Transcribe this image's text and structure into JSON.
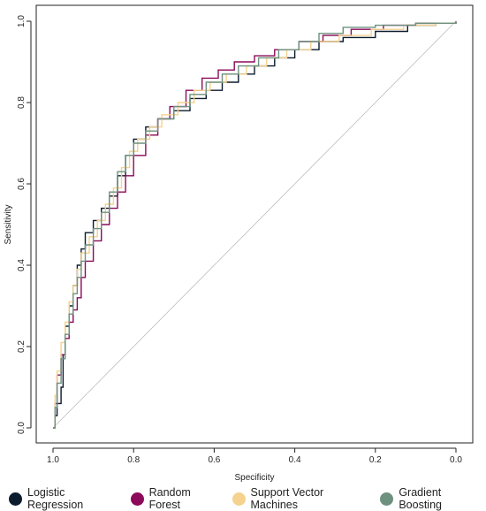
{
  "chart_data": {
    "type": "line",
    "title": "",
    "xlabel": "Specificity",
    "ylabel": "Sensitivity",
    "xlim": [
      1.0,
      0.0
    ],
    "ylim": [
      0.0,
      1.0
    ],
    "x_reversed": true,
    "xticks": [
      "1.0",
      "0.8",
      "0.6",
      "0.4",
      "0.2",
      "0.0"
    ],
    "yticks": [
      "0.0",
      "0.2",
      "0.4",
      "0.6",
      "0.8",
      "1.0"
    ],
    "grid": false,
    "legend_position": "bottom",
    "reference_line": {
      "from": [
        1.0,
        0.0
      ],
      "to": [
        0.0,
        1.0
      ],
      "color": "#bdbdbd"
    },
    "series": [
      {
        "name": "Logistic Regression",
        "color": "#0d1b2e",
        "points": [
          [
            1.0,
            0.0
          ],
          [
            0.995,
            0.03
          ],
          [
            0.99,
            0.06
          ],
          [
            0.98,
            0.1
          ],
          [
            0.975,
            0.18
          ],
          [
            0.97,
            0.25
          ],
          [
            0.96,
            0.3
          ],
          [
            0.95,
            0.35
          ],
          [
            0.94,
            0.4
          ],
          [
            0.93,
            0.44
          ],
          [
            0.92,
            0.48
          ],
          [
            0.9,
            0.51
          ],
          [
            0.88,
            0.54
          ],
          [
            0.86,
            0.57
          ],
          [
            0.84,
            0.62
          ],
          [
            0.82,
            0.67
          ],
          [
            0.8,
            0.71
          ],
          [
            0.77,
            0.74
          ],
          [
            0.74,
            0.76
          ],
          [
            0.7,
            0.78
          ],
          [
            0.66,
            0.81
          ],
          [
            0.62,
            0.83
          ],
          [
            0.58,
            0.85
          ],
          [
            0.54,
            0.87
          ],
          [
            0.5,
            0.89
          ],
          [
            0.45,
            0.91
          ],
          [
            0.4,
            0.93
          ],
          [
            0.34,
            0.95
          ],
          [
            0.28,
            0.96
          ],
          [
            0.2,
            0.975
          ],
          [
            0.12,
            0.99
          ],
          [
            0.05,
            0.995
          ],
          [
            0.0,
            1.0
          ]
        ]
      },
      {
        "name": "Random Forest",
        "color": "#8b0a5a",
        "points": [
          [
            1.0,
            0.0
          ],
          [
            0.995,
            0.06
          ],
          [
            0.99,
            0.13
          ],
          [
            0.98,
            0.18
          ],
          [
            0.97,
            0.22
          ],
          [
            0.96,
            0.26
          ],
          [
            0.95,
            0.29
          ],
          [
            0.94,
            0.32
          ],
          [
            0.93,
            0.37
          ],
          [
            0.92,
            0.41
          ],
          [
            0.9,
            0.46
          ],
          [
            0.88,
            0.5
          ],
          [
            0.86,
            0.54
          ],
          [
            0.84,
            0.58
          ],
          [
            0.82,
            0.62
          ],
          [
            0.8,
            0.67
          ],
          [
            0.77,
            0.72
          ],
          [
            0.74,
            0.76
          ],
          [
            0.71,
            0.79
          ],
          [
            0.67,
            0.83
          ],
          [
            0.63,
            0.86
          ],
          [
            0.59,
            0.88
          ],
          [
            0.55,
            0.9
          ],
          [
            0.5,
            0.915
          ],
          [
            0.45,
            0.93
          ],
          [
            0.39,
            0.95
          ],
          [
            0.33,
            0.965
          ],
          [
            0.26,
            0.98
          ],
          [
            0.18,
            0.99
          ],
          [
            0.1,
            0.995
          ],
          [
            0.0,
            1.0
          ]
        ]
      },
      {
        "name": "Support Vector Machines",
        "color": "#f5d28e",
        "points": [
          [
            1.0,
            0.0
          ],
          [
            0.995,
            0.08
          ],
          [
            0.99,
            0.14
          ],
          [
            0.98,
            0.21
          ],
          [
            0.97,
            0.26
          ],
          [
            0.96,
            0.31
          ],
          [
            0.95,
            0.35
          ],
          [
            0.94,
            0.39
          ],
          [
            0.93,
            0.43
          ],
          [
            0.91,
            0.47
          ],
          [
            0.89,
            0.51
          ],
          [
            0.87,
            0.55
          ],
          [
            0.85,
            0.59
          ],
          [
            0.83,
            0.64
          ],
          [
            0.81,
            0.68
          ],
          [
            0.79,
            0.71
          ],
          [
            0.76,
            0.74
          ],
          [
            0.73,
            0.77
          ],
          [
            0.69,
            0.8
          ],
          [
            0.65,
            0.83
          ],
          [
            0.61,
            0.85
          ],
          [
            0.57,
            0.87
          ],
          [
            0.52,
            0.89
          ],
          [
            0.47,
            0.91
          ],
          [
            0.42,
            0.93
          ],
          [
            0.36,
            0.95
          ],
          [
            0.29,
            0.965
          ],
          [
            0.21,
            0.98
          ],
          [
            0.13,
            0.99
          ],
          [
            0.05,
            0.995
          ],
          [
            0.0,
            1.0
          ]
        ]
      },
      {
        "name": "Gradient Boosting",
        "color": "#6e917f",
        "points": [
          [
            1.0,
            0.0
          ],
          [
            0.995,
            0.05
          ],
          [
            0.99,
            0.11
          ],
          [
            0.98,
            0.17
          ],
          [
            0.97,
            0.23
          ],
          [
            0.96,
            0.28
          ],
          [
            0.95,
            0.33
          ],
          [
            0.94,
            0.37
          ],
          [
            0.93,
            0.41
          ],
          [
            0.92,
            0.45
          ],
          [
            0.9,
            0.49
          ],
          [
            0.88,
            0.53
          ],
          [
            0.86,
            0.58
          ],
          [
            0.84,
            0.63
          ],
          [
            0.82,
            0.67
          ],
          [
            0.8,
            0.7
          ],
          [
            0.77,
            0.73
          ],
          [
            0.74,
            0.76
          ],
          [
            0.7,
            0.79
          ],
          [
            0.66,
            0.82
          ],
          [
            0.62,
            0.85
          ],
          [
            0.58,
            0.87
          ],
          [
            0.54,
            0.89
          ],
          [
            0.49,
            0.91
          ],
          [
            0.44,
            0.93
          ],
          [
            0.39,
            0.95
          ],
          [
            0.34,
            0.97
          ],
          [
            0.28,
            0.985
          ],
          [
            0.2,
            0.99
          ],
          [
            0.1,
            0.995
          ],
          [
            0.0,
            1.0
          ]
        ]
      }
    ]
  }
}
